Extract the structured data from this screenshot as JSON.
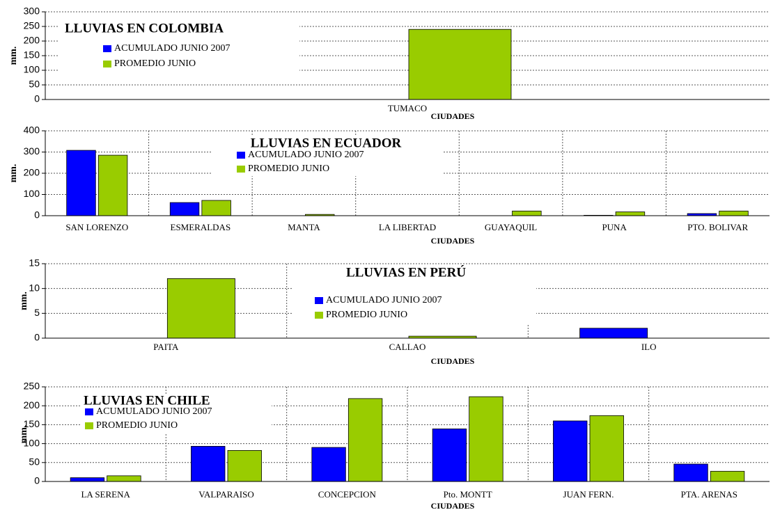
{
  "chart_data": [
    {
      "type": "bar",
      "title": "LLUVIAS EN COLOMBIA",
      "x_label": "CIUDADES",
      "y_label": "mm.",
      "categories": [
        "TUMACO"
      ],
      "series": [
        {
          "name": "ACUMULADO JUNIO 2007",
          "color": "#0000ff",
          "values": [
            null
          ]
        },
        {
          "name": "PROMEDIO JUNIO",
          "color": "#99cc00",
          "values": [
            240
          ]
        }
      ],
      "ylim": [
        0,
        300
      ],
      "yticks": [
        0,
        50,
        100,
        150,
        200,
        250,
        300
      ],
      "grid": true
    },
    {
      "type": "bar",
      "title": "LLUVIAS EN ECUADOR",
      "x_label": "CIUDADES",
      "y_label": "mm.",
      "categories": [
        "SAN LORENZO",
        "ESMERALDAS",
        "MANTA",
        "LA LIBERTAD",
        "GUAYAQUIL",
        "PUNA",
        "PTO. BOLIVAR"
      ],
      "series": [
        {
          "name": "ACUMULADO JUNIO 2007",
          "color": "#0000ff",
          "values": [
            308,
            62,
            0,
            0,
            0,
            2,
            10
          ]
        },
        {
          "name": "PROMEDIO JUNIO",
          "color": "#99cc00",
          "values": [
            285,
            72,
            6,
            0,
            22,
            18,
            22
          ]
        }
      ],
      "ylim": [
        0,
        400
      ],
      "yticks": [
        0,
        100,
        200,
        300,
        400
      ],
      "grid": true
    },
    {
      "type": "bar",
      "title": "LLUVIAS EN PERÚ",
      "x_label": "CIUDADES",
      "y_label": "mm.",
      "categories": [
        "PAITA",
        "CALLAO",
        "ILO"
      ],
      "series": [
        {
          "name": "ACUMULADO JUNIO 2007",
          "color": "#0000ff",
          "values": [
            0,
            0,
            2
          ]
        },
        {
          "name": "PROMEDIO JUNIO",
          "color": "#99cc00",
          "values": [
            12,
            0.4,
            0
          ]
        }
      ],
      "ylim": [
        0,
        15
      ],
      "yticks": [
        0,
        5,
        10,
        15
      ],
      "grid": true
    },
    {
      "type": "bar",
      "title": "LLUVIAS EN CHILE",
      "x_label": "CIUDADES",
      "y_label": "mm.",
      "categories": [
        "LA SERENA",
        "VALPARAISO",
        "CONCEPCION",
        "Pto. MONTT",
        "JUAN FERN.",
        "PTA. ARENAS"
      ],
      "series": [
        {
          "name": "ACUMULADO JUNIO 2007",
          "color": "#0000ff",
          "values": [
            10,
            93,
            90,
            139,
            160,
            46
          ]
        },
        {
          "name": "PROMEDIO JUNIO",
          "color": "#99cc00",
          "values": [
            15,
            82,
            219,
            224,
            174,
            27
          ]
        }
      ],
      "ylim": [
        0,
        250
      ],
      "yticks": [
        0,
        50,
        100,
        150,
        200,
        250
      ],
      "grid": true
    }
  ]
}
